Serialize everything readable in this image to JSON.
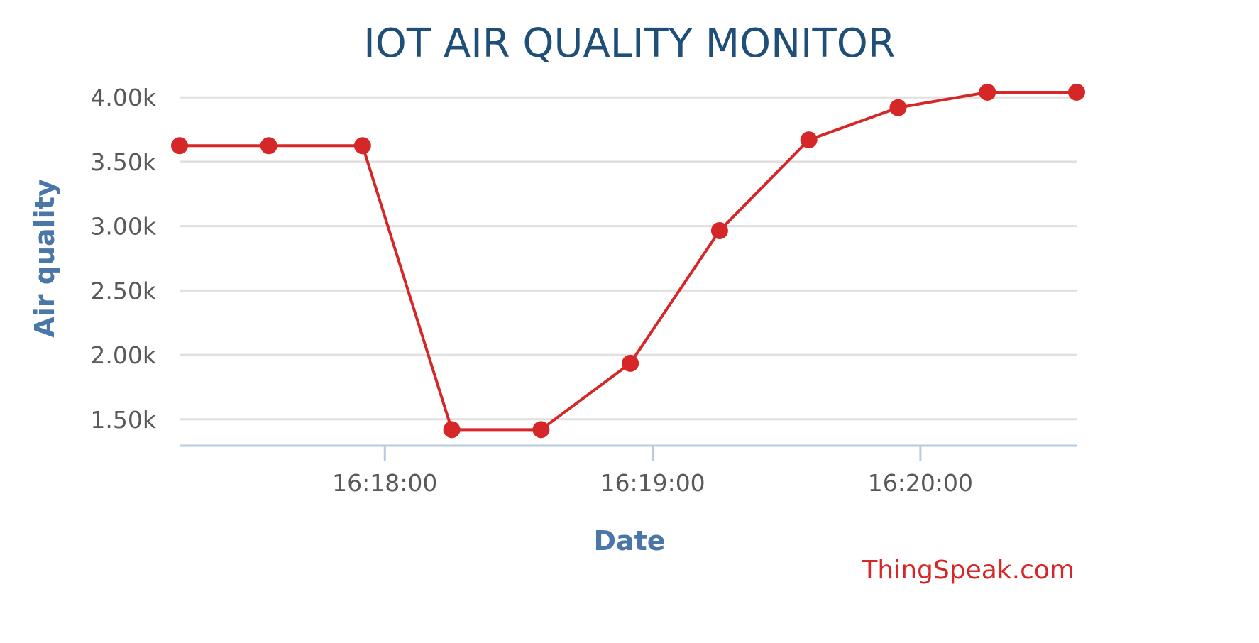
{
  "chart_data": {
    "type": "line",
    "title": "IOT AIR QUALITY MONITOR",
    "xlabel": "Date",
    "ylabel": "Air quality",
    "credit": "ThingSpeak.com",
    "x_tick_labels": [
      "16:18:00",
      "16:19:00",
      "16:20:00"
    ],
    "x_tick_values": [
      "16:18:00",
      "16:19:00",
      "16:20:00"
    ],
    "y_tick_values": [
      1500,
      2000,
      2500,
      3000,
      3500,
      4000
    ],
    "y_tick_labels": [
      "1.50k",
      "2.00k",
      "2.50k",
      "3.00k",
      "3.50k",
      "4.00k"
    ],
    "xlim": [
      "16:17:14",
      "16:20:35"
    ],
    "ylim": [
      1295,
      4205
    ],
    "grid": true,
    "legend": "none",
    "series": [
      {
        "color": "#d62728",
        "x": [
          "16:17:14",
          "16:17:34",
          "16:17:55",
          "16:18:15",
          "16:18:35",
          "16:18:55",
          "16:19:15",
          "16:19:35",
          "16:19:55",
          "16:20:15",
          "16:20:35"
        ],
        "values": [
          3625,
          3625,
          3625,
          1420,
          1420,
          1935,
          2965,
          3670,
          3920,
          4040,
          4040
        ]
      }
    ]
  }
}
